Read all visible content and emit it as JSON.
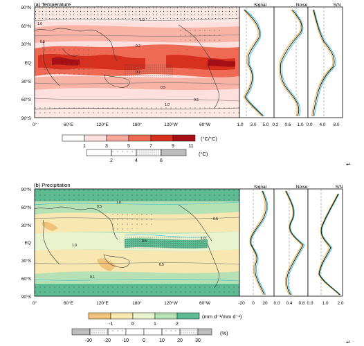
{
  "figure": {
    "panels": [
      {
        "id": "temperature",
        "title": "(a) Temperature",
        "lat_labels": [
          "90°N",
          "60°N",
          "30°N",
          "EQ",
          "30°S",
          "60°S",
          "90°S"
        ],
        "lon_labels": [
          "0°",
          "60°E",
          "120°E",
          "180°",
          "120°W",
          "60°W"
        ],
        "profiles": [
          {
            "title": "Signal",
            "ticks": [
              "1.0",
              "3.0",
              "5.0"
            ]
          },
          {
            "title": "Noise",
            "ticks": [
              "0.2",
              "0.6",
              "1.0"
            ]
          },
          {
            "title": "S/N",
            "ticks": [
              "0.0",
              "4.0",
              "8.0"
            ]
          }
        ],
        "colorbar": {
          "labels": [
            "1",
            "3",
            "5",
            "7",
            "9",
            "11"
          ],
          "units": "(°C/°C)",
          "colors": [
            "#ffffff",
            "#fde0dd",
            "#f7a89b",
            "#ef6a55",
            "#d7301f",
            "#a50f15"
          ]
        },
        "stipple_bar": {
          "labels": [
            "2",
            "4",
            "6"
          ],
          "units": "(°C)"
        },
        "contour_labels": [
          "1.0",
          "0.5",
          "0.2",
          "0.5",
          "1.0",
          "0.5",
          "0.2",
          "1.0"
        ],
        "line_colors": {
          "black": "#000000",
          "orange": "#f5a623",
          "cyan": "#29b6d6"
        }
      },
      {
        "id": "precipitation",
        "title": "(b) Precipitation",
        "lat_labels": [
          "90°N",
          "60°N",
          "30°N",
          "EQ",
          "30°S",
          "60°S",
          "90°S"
        ],
        "lon_labels": [
          "0°",
          "60°E",
          "120°E",
          "180°",
          "120°W",
          "60°W"
        ],
        "profiles": [
          {
            "title": "Signal",
            "ticks": [
              "-20",
              "0",
              "20"
            ]
          },
          {
            "title": "Noise",
            "ticks": [
              "0.0",
              "0.4",
              "0.8"
            ]
          },
          {
            "title": "S/N",
            "ticks": [
              "0.0",
              "1.0",
              "2.0"
            ]
          }
        ],
        "colorbar": {
          "labels": [
            "-1",
            "0",
            "1",
            "2"
          ],
          "units": "(mm d⁻¹/mm d⁻¹)",
          "colors": [
            "#f0c27b",
            "#f8e7b0",
            "#e9f4cf",
            "#b6e1b4",
            "#5dbb93"
          ]
        },
        "stipple_bar": {
          "labels": [
            "-30",
            "-20",
            "-10",
            "0",
            "10",
            "20",
            "30"
          ],
          "units": "(%)"
        },
        "contour_labels": [
          "0.5",
          "1.0",
          "0.5",
          "1.0",
          "0.5",
          "0.1",
          "0.5",
          "1.0"
        ],
        "line_colors": {
          "black": "#000000",
          "orange": "#f5a623",
          "cyan": "#29b6d6"
        }
      }
    ],
    "return_marks": [
      "↵",
      "↵"
    ]
  }
}
